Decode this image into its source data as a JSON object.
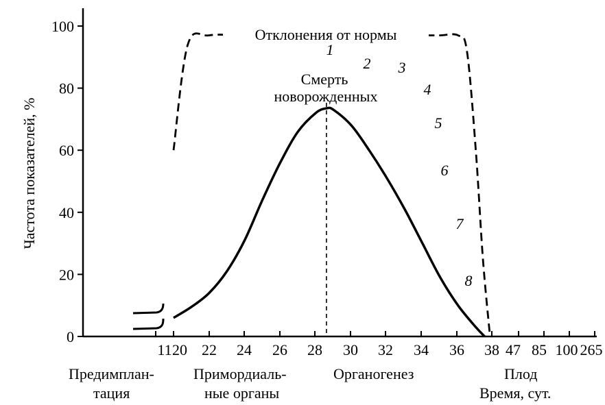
{
  "chart_data": {
    "type": "line",
    "title": "",
    "xlabel": "Время, сут.",
    "ylabel": "Частота показателей, %",
    "ylim": [
      0,
      100
    ],
    "yticks": [
      "0",
      "20",
      "40",
      "60",
      "80",
      "100"
    ],
    "xticks": [
      "11",
      "20",
      "22",
      "24",
      "26",
      "28",
      "30",
      "32",
      "34",
      "36",
      "38",
      "47",
      "85",
      "100",
      "265"
    ],
    "stages": [
      "Предимплан-",
      "тация",
      "Примордиаль-",
      "ные органы",
      "Органогенез",
      "Плод"
    ],
    "annotations": {
      "abnormality": "Отклонения от нормы",
      "death_line1": "Смерть",
      "death_line2": "новорожденных",
      "numbers": [
        "1",
        "2",
        "3",
        "4",
        "5",
        "6",
        "7",
        "8"
      ]
    },
    "series": [
      {
        "style": "solid",
        "x": [
          20,
          21,
          22,
          23,
          24,
          25,
          26,
          27,
          28,
          28.6,
          29,
          30,
          31,
          32,
          33,
          34,
          35,
          36,
          37,
          37.5
        ],
        "y": [
          6,
          9.5,
          14,
          21,
          31,
          44,
          56,
          66,
          72,
          73.5,
          73,
          68,
          60,
          51,
          41,
          30,
          19,
          10,
          3,
          0
        ]
      },
      {
        "style": "dashed",
        "x": [
          20,
          20.8,
          22,
          24,
          26,
          28,
          30,
          32,
          34,
          35,
          36,
          36.5,
          37,
          37.4,
          37.8
        ],
        "y": [
          60,
          94,
          97,
          97,
          97,
          97,
          97,
          97,
          97,
          97,
          97,
          92,
          60,
          25,
          0
        ]
      }
    ],
    "vertical_marker": {
      "x": 28.6,
      "style": "dashed"
    }
  }
}
